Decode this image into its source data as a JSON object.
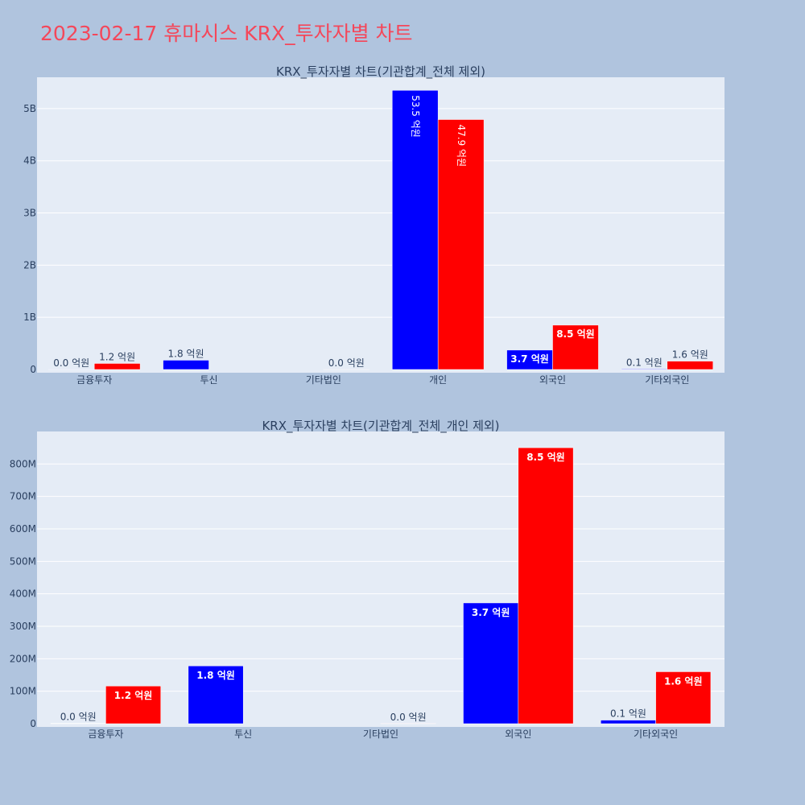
{
  "page": {
    "title": "2023-02-17 휴마시스 KRX_투자자별 차트"
  },
  "colors": {
    "background": "#b0c4de",
    "plot_bg": "#e5ecf6",
    "title": "#f4475a",
    "series_a": "#0000ff",
    "series_b": "#ff0000",
    "text": "#2a3f5f"
  },
  "chart_data": [
    {
      "type": "bar",
      "title": "KRX_투자자별 차트(기관합계_전체 제외)",
      "categories": [
        "금융투자",
        "투신",
        "기타법인",
        "개인",
        "외국인",
        "기타외국인"
      ],
      "series": [
        {
          "color": "#0000ff",
          "values": [
            1200000,
            178000000,
            0,
            5350000000,
            372000000,
            11000000
          ],
          "labels": [
            "0.0 억원",
            "1.8 억원",
            "",
            "53.5 억원",
            "3.7 억원",
            "0.1 억원"
          ]
        },
        {
          "color": "#ff0000",
          "values": [
            116000000,
            0,
            500000,
            4790000000,
            850000000,
            160000000
          ],
          "labels": [
            "1.2 억원",
            "",
            "0.0 억원",
            "47.9 억원",
            "8.5 억원",
            "1.6 억원"
          ]
        }
      ],
      "ylim": [
        0,
        5600000000
      ],
      "y_ticks": [
        0,
        1000000000,
        2000000000,
        3000000000,
        4000000000,
        5000000000
      ],
      "y_tick_labels": [
        "0",
        "1B",
        "2B",
        "3B",
        "4B",
        "5B"
      ],
      "grid": true,
      "legend": "none"
    },
    {
      "type": "bar",
      "title": "KRX_투자자별 차트(기관합계_전체_개인 제외)",
      "categories": [
        "금융투자",
        "투신",
        "기타법인",
        "외국인",
        "기타외국인"
      ],
      "series": [
        {
          "color": "#0000ff",
          "values": [
            1200000,
            178000000,
            0,
            372000000,
            11000000
          ],
          "labels": [
            "0.0 억원",
            "1.8 억원",
            "",
            "3.7 억원",
            "0.1 억원"
          ]
        },
        {
          "color": "#ff0000",
          "values": [
            116000000,
            0,
            500000,
            850000000,
            160000000
          ],
          "labels": [
            "1.2 억원",
            "",
            "0.0 억원",
            "8.5 억원",
            "1.6 억원"
          ]
        }
      ],
      "ylim": [
        0,
        900000000
      ],
      "y_ticks": [
        0,
        100000000,
        200000000,
        300000000,
        400000000,
        500000000,
        600000000,
        700000000,
        800000000
      ],
      "y_tick_labels": [
        "0",
        "100M",
        "200M",
        "300M",
        "400M",
        "500M",
        "600M",
        "700M",
        "800M"
      ],
      "grid": true,
      "legend": "none"
    }
  ]
}
